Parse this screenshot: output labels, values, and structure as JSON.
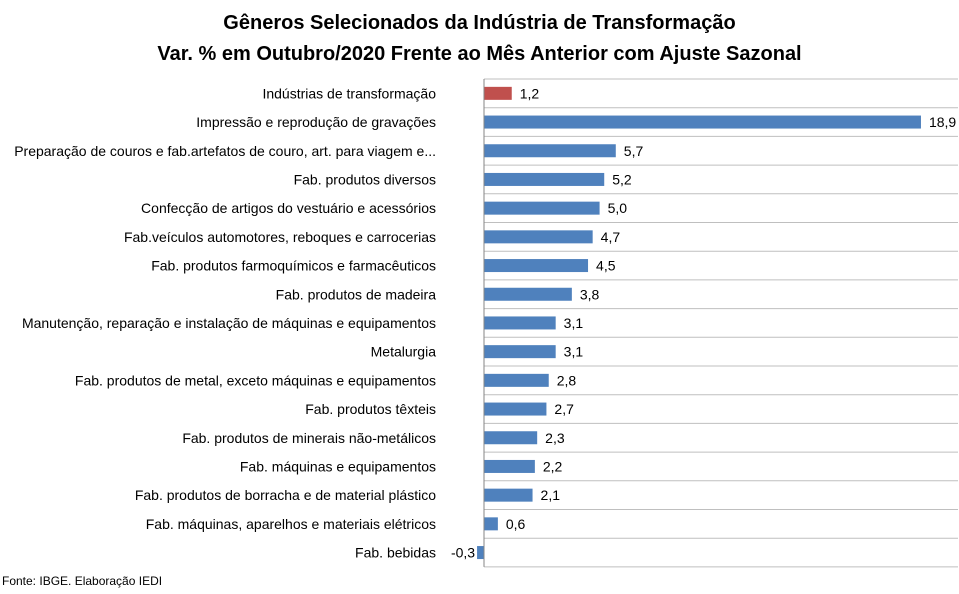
{
  "chart_data": {
    "type": "bar",
    "orientation": "horizontal",
    "title": "Gêneros Selecionados da Indústria de Transformação",
    "subtitle": "Var. % em Outubro/2020 Frente ao Mês Anterior com Ajuste Sazonal",
    "categories": [
      "Indústrias de transformação",
      "Impressão e reprodução de gravações",
      "Preparação de couros e fab.artefatos de couro, art. para viagem e...",
      "Fab. produtos diversos",
      "Confecção de artigos do vestuário e acessórios",
      "Fab.veículos automotores, reboques e carrocerias",
      "Fab. produtos farmoquímicos e farmacêuticos",
      "Fab. produtos de madeira",
      "Manutenção, reparação e instalação de máquinas e equipamentos",
      "Metalurgia",
      "Fab. produtos de metal, exceto máquinas e equipamentos",
      "Fab. produtos têxteis",
      "Fab. produtos de minerais não-metálicos",
      "Fab. máquinas e equipamentos",
      "Fab. produtos de borracha e de material plástico",
      "Fab. máquinas, aparelhos e materiais elétricos",
      "Fab. bebidas"
    ],
    "values": [
      1.2,
      18.9,
      5.7,
      5.2,
      5.0,
      4.7,
      4.5,
      3.8,
      3.1,
      3.1,
      2.8,
      2.7,
      2.3,
      2.2,
      2.1,
      0.6,
      -0.3
    ],
    "value_labels": [
      "1,2",
      "18,9",
      "5,7",
      "5,2",
      "5,0",
      "4,7",
      "4,5",
      "3,8",
      "3,1",
      "3,1",
      "2,8",
      "2,7",
      "2,3",
      "2,2",
      "2,1",
      "0,6",
      "-0,3"
    ],
    "highlight_index": 0,
    "colors": {
      "highlight": "#C0504D",
      "default": "#4F81BD",
      "gridline": "#BFBFBF",
      "axis": "#868686"
    },
    "grid": "horizontal",
    "legend": "none"
  },
  "source": "Fonte: IBGE. Elaboração IEDI"
}
